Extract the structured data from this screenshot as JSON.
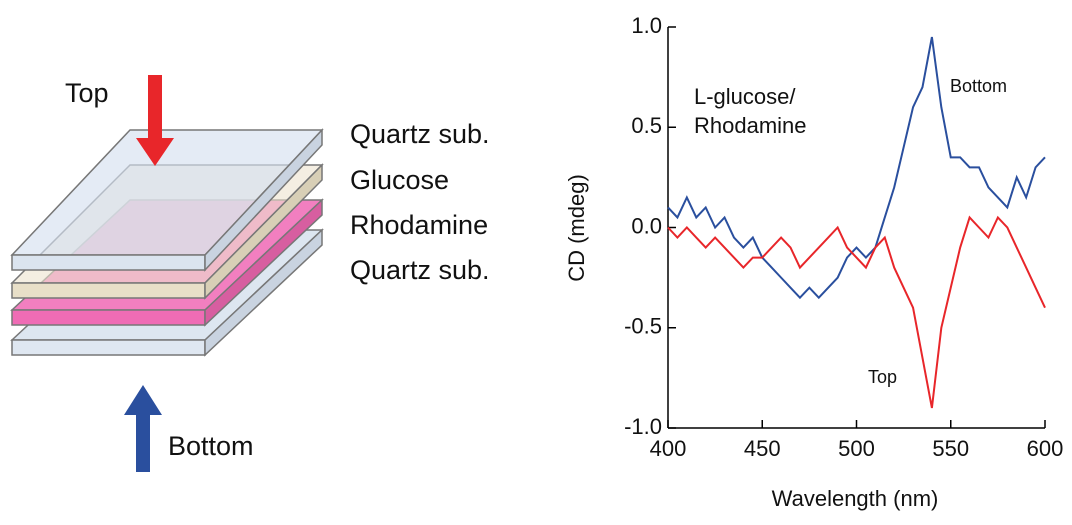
{
  "diagram": {
    "top_label": "Top",
    "bottom_label": "Bottom",
    "layers": [
      "Quartz sub.",
      "Glucose",
      "Rhodamine",
      "Quartz sub."
    ]
  },
  "chart_data": {
    "type": "line",
    "xlabel": "Wavelength (nm)",
    "ylabel": "CD (mdeg)",
    "annotations": [
      "L-glucose/",
      "Rhodamine"
    ],
    "x": [
      400,
      405,
      410,
      415,
      420,
      425,
      430,
      435,
      440,
      445,
      450,
      455,
      460,
      465,
      470,
      475,
      480,
      485,
      490,
      495,
      500,
      505,
      510,
      515,
      520,
      525,
      530,
      535,
      540,
      545,
      550,
      555,
      560,
      565,
      570,
      575,
      580,
      585,
      590,
      595,
      600
    ],
    "series": [
      {
        "name": "Bottom",
        "color": "#2a4f9e",
        "values": [
          0.1,
          0.05,
          0.15,
          0.05,
          0.1,
          0.0,
          0.05,
          -0.05,
          -0.1,
          -0.05,
          -0.15,
          -0.2,
          -0.25,
          -0.3,
          -0.35,
          -0.3,
          -0.35,
          -0.3,
          -0.25,
          -0.15,
          -0.1,
          -0.15,
          -0.1,
          0.05,
          0.2,
          0.4,
          0.6,
          0.7,
          0.95,
          0.6,
          0.35,
          0.35,
          0.3,
          0.3,
          0.2,
          0.15,
          0.1,
          0.25,
          0.15,
          0.3,
          0.35
        ]
      },
      {
        "name": "Top",
        "color": "#e8262a",
        "values": [
          0.0,
          -0.05,
          0.0,
          -0.05,
          -0.1,
          -0.05,
          -0.1,
          -0.15,
          -0.2,
          -0.15,
          -0.15,
          -0.1,
          -0.05,
          -0.1,
          -0.2,
          -0.15,
          -0.1,
          -0.05,
          0.0,
          -0.1,
          -0.15,
          -0.2,
          -0.1,
          -0.05,
          -0.2,
          -0.3,
          -0.4,
          -0.65,
          -0.9,
          -0.5,
          -0.3,
          -0.1,
          0.05,
          0.0,
          -0.05,
          0.05,
          0.0,
          -0.1,
          -0.2,
          -0.3,
          -0.4
        ]
      }
    ],
    "xlim": [
      400,
      600
    ],
    "xticks": [
      400,
      450,
      500,
      550,
      600
    ],
    "ylim": [
      -1,
      1
    ],
    "yticks": [
      {
        "value": -1,
        "label": "-1.0"
      },
      -0.5,
      {
        "value": 0,
        "label": "0.0"
      },
      0.5,
      {
        "value": 1,
        "label": "1.0"
      }
    ]
  }
}
